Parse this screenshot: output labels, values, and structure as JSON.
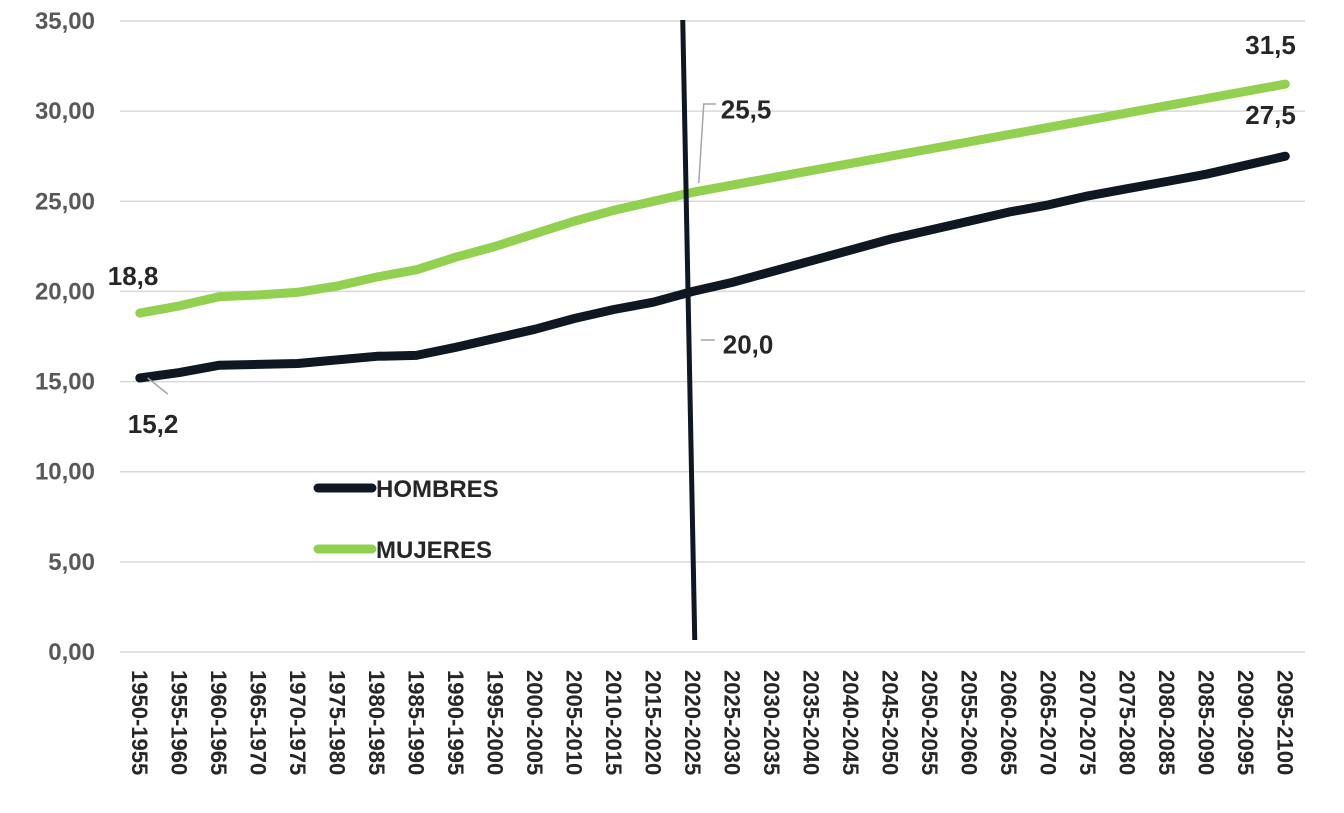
{
  "chart_data": {
    "type": "line",
    "categories": [
      "1950-1955",
      "1955-1960",
      "1960-1965",
      "1965-1970",
      "1970-1975",
      "1975-1980",
      "1980-1985",
      "1985-1990",
      "1990-1995",
      "1995-2000",
      "2000-2005",
      "2005-2010",
      "2010-2015",
      "2015-2020",
      "2020-2025",
      "2025-2030",
      "2030-2035",
      "2035-2040",
      "2040-2045",
      "2045-2050",
      "2050-2055",
      "2055-2060",
      "2060-2065",
      "2065-2070",
      "2070-2075",
      "2075-2080",
      "2080-2085",
      "2085-2090",
      "2090-2095",
      "2095-2100"
    ],
    "series": [
      {
        "name": "HOMBRES",
        "color": "#0f1722",
        "values": [
          15.2,
          15.5,
          15.9,
          15.95,
          16.0,
          16.2,
          16.4,
          16.45,
          16.9,
          17.4,
          17.9,
          18.5,
          19.0,
          19.4,
          20.0,
          20.5,
          21.1,
          21.7,
          22.3,
          22.9,
          23.4,
          23.9,
          24.4,
          24.8,
          25.3,
          25.7,
          26.1,
          26.5,
          27.0,
          27.5
        ]
      },
      {
        "name": "MUJERES",
        "color": "#92d050",
        "values": [
          18.8,
          19.2,
          19.7,
          19.8,
          19.95,
          20.3,
          20.8,
          21.2,
          21.9,
          22.5,
          23.2,
          23.9,
          24.5,
          25.0,
          25.5,
          25.9,
          26.3,
          26.7,
          27.1,
          27.5,
          27.9,
          28.3,
          28.7,
          29.1,
          29.5,
          29.9,
          30.3,
          30.7,
          31.1,
          31.5
        ]
      }
    ],
    "ylim": [
      0,
      35
    ],
    "yticks": [
      "0,00",
      "5,00",
      "10,00",
      "15,00",
      "20,00",
      "25,00",
      "30,00",
      "35,00"
    ],
    "grid": true,
    "legend_position": "center-left",
    "data_labels": [
      {
        "series": 1,
        "index": 0,
        "text": "18,8"
      },
      {
        "series": 0,
        "index": 0,
        "text": "15,2"
      },
      {
        "series": 1,
        "index": 14,
        "text": "25,5"
      },
      {
        "series": 0,
        "index": 14,
        "text": "20,0"
      },
      {
        "series": 1,
        "index": 29,
        "text": "31,5"
      },
      {
        "series": 0,
        "index": 29,
        "text": "27,5"
      }
    ],
    "marker_line": {
      "category": "2020-2025",
      "color": "#0f1722"
    }
  }
}
